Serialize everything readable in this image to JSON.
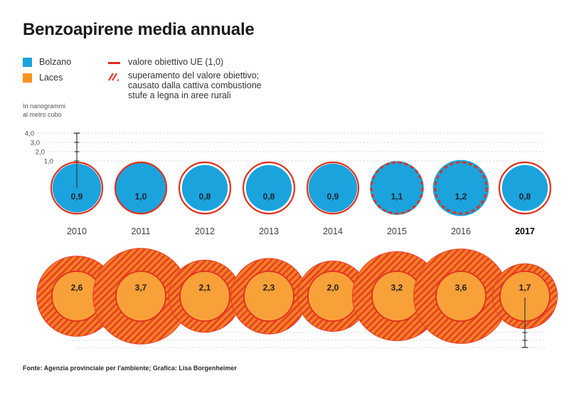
{
  "title": "Benzoapirene media annuale",
  "legend": {
    "series": [
      {
        "label": "Bolzano",
        "color": "#1ba3dd"
      },
      {
        "label": "Laces",
        "color": "#f7941e"
      }
    ],
    "target_label": "valore obiettivo UE (1,0)",
    "exceed_lines": [
      "superamento del valore obiettivo;",
      "causato dalla cattiva combustione",
      "stufe a legna in aree rurali"
    ]
  },
  "axis_note": [
    "In nanogrammi",
    "al metro cubo"
  ],
  "footer": "Fonte: Agenzia provinciale per l'ambiente; Grafica: Lisa Borgenheimer",
  "colors": {
    "bolzano_blue": "#1ba3dd",
    "laces_inner_orange": "#f9a139",
    "hatch_base_orange": "#f58220",
    "hatch_stripe_red": "#e6402a",
    "target_red": "#e1301f",
    "grid_dot_gray": "#c6c6c6",
    "ruler_dark": "#3a3a3a",
    "value_text": "#1b2228",
    "year_text": "#3f3f3f"
  },
  "chart_data": {
    "type": "bubble",
    "title": "Benzoapirene media annuale",
    "unit_label": "In nanogrammi al metro cubo",
    "categories": [
      "2010",
      "2011",
      "2012",
      "2013",
      "2014",
      "2015",
      "2016",
      "2017"
    ],
    "series": [
      {
        "name": "Bolzano",
        "values": [
          0.9,
          1.0,
          0.8,
          0.8,
          0.9,
          1.1,
          1.2,
          0.8
        ]
      },
      {
        "name": "Laces",
        "values": [
          2.6,
          3.7,
          2.1,
          2.3,
          2.0,
          3.2,
          3.6,
          1.7
        ]
      }
    ],
    "target_value": 1.0,
    "y_ticks": [
      4.0,
      3.0,
      2.0,
      1.0
    ],
    "grid": "dotted",
    "legend_position": "top-left",
    "layout": {
      "x0": 108,
      "dx": 90,
      "blue_unit_r": 36,
      "orange_unit_r": 35,
      "blue_cy": 264,
      "orange_cy": 416,
      "blue_grid_y": [
        187,
        200,
        213,
        226
      ],
      "blue_grid_x0": [
        52,
        60,
        67,
        79
      ],
      "orange_grid_y": [
        467,
        478,
        488
      ],
      "orange_grid_x0": 95,
      "grid_x1": 766,
      "year_y": 329,
      "bold_year": "2017"
    }
  }
}
